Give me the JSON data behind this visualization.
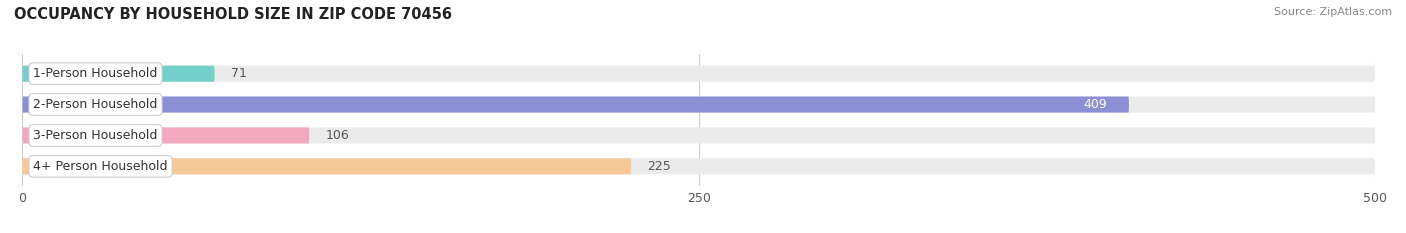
{
  "title": "OCCUPANCY BY HOUSEHOLD SIZE IN ZIP CODE 70456",
  "source": "Source: ZipAtlas.com",
  "categories": [
    "1-Person Household",
    "2-Person Household",
    "3-Person Household",
    "4+ Person Household"
  ],
  "values": [
    71,
    409,
    106,
    225
  ],
  "bar_colors": [
    "#72cfc9",
    "#8b8fd4",
    "#f2a8be",
    "#f5c898"
  ],
  "bar_bg_colors": [
    "#eeeeee",
    "#eeeeee",
    "#eeeeee",
    "#eeeeee"
  ],
  "label_text_colors": [
    "#444444",
    "#444444",
    "#444444",
    "#444444"
  ],
  "value_colors": [
    "#555555",
    "#ffffff",
    "#555555",
    "#555555"
  ],
  "xlim": [
    0,
    500
  ],
  "xticks": [
    0,
    250,
    500
  ],
  "bar_height": 0.52,
  "background_color": "#ffffff",
  "plot_bg_color": "#f2f2f2",
  "title_fontsize": 10.5,
  "source_fontsize": 8,
  "bar_label_fontsize": 9,
  "axis_fontsize": 9,
  "category_fontsize": 9
}
